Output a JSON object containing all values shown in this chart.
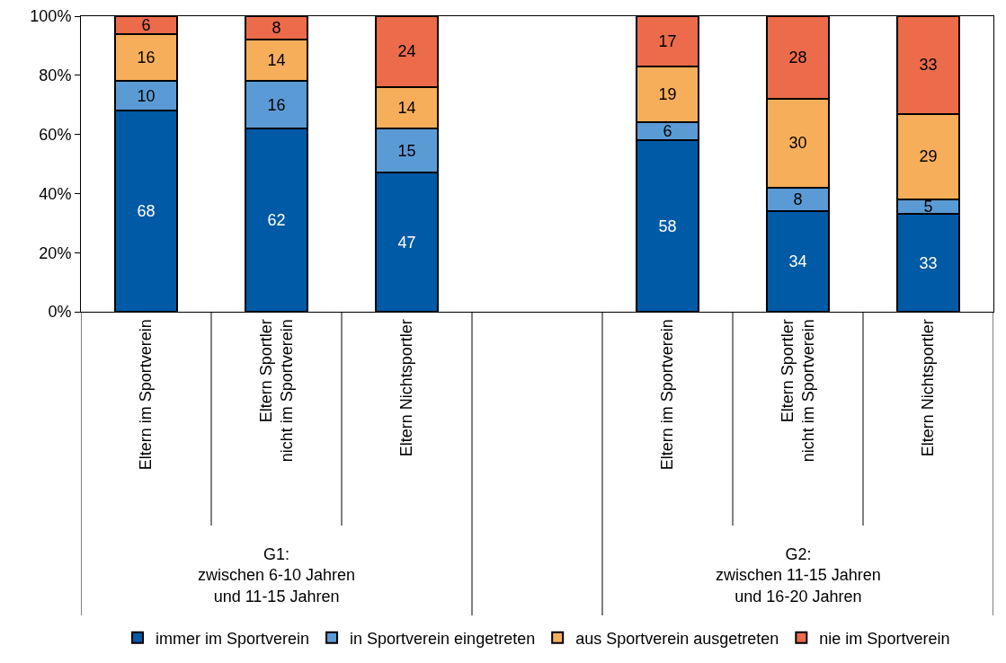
{
  "chart_data": {
    "type": "bar",
    "stacked": true,
    "data_labels": true,
    "legend": "bottom",
    "grid": false,
    "categories": [
      "Eltern im Sportverein",
      "Eltern Sportler\nnicht im Sportverein",
      "Eltern Nichtsportler",
      null,
      "Eltern im Sportverein",
      "Eltern Sportler\nnicht im Sportverein",
      "Eltern Nichtsportler"
    ],
    "series": [
      {
        "name": "immer im Sportverein",
        "color": "#005aa5",
        "values": [
          68,
          62,
          47,
          null,
          58,
          34,
          33
        ]
      },
      {
        "name": "in Sportverein eingetreten",
        "color": "#5b9bd5",
        "values": [
          10,
          16,
          15,
          null,
          6,
          8,
          5
        ]
      },
      {
        "name": "aus Sportverein ausgetreten",
        "color": "#f7ae5a",
        "values": [
          16,
          14,
          14,
          null,
          19,
          30,
          29
        ]
      },
      {
        "name": "nie im Sportverein",
        "color": "#eb6b4b",
        "values": [
          6,
          8,
          24,
          null,
          17,
          28,
          33
        ]
      }
    ],
    "ylim": [
      0,
      100
    ],
    "yticks": [
      {
        "value": 0,
        "label": "0%"
      },
      {
        "value": 20,
        "label": "20%"
      },
      {
        "value": 40,
        "label": "40%"
      },
      {
        "value": 60,
        "label": "60%"
      },
      {
        "value": 80,
        "label": "80%"
      },
      {
        "value": 100,
        "label": "100%"
      }
    ],
    "annotations": [
      "G1:\nzwischen 6-10 Jahren\nund 11-15 Jahren",
      "G2:\nzwischen 11-15 Jahren\nund 16-20 Jahren"
    ]
  }
}
